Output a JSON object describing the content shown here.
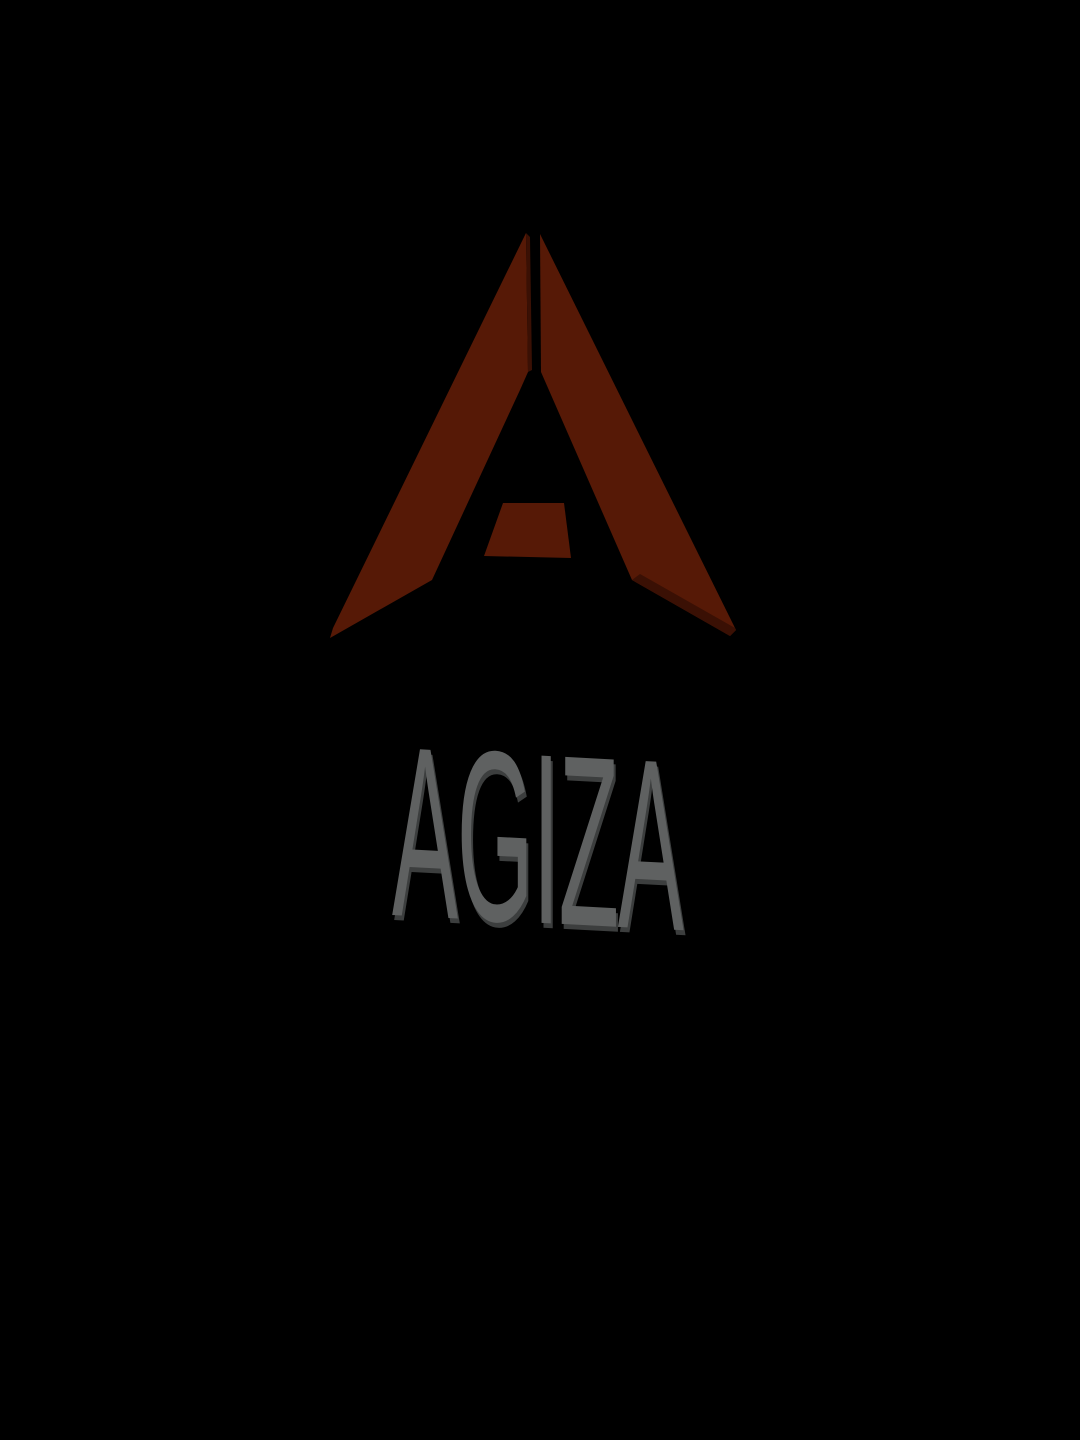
{
  "splash": {
    "brand_name": "AGIZA",
    "logo_icon": "stylized-letter-a-icon",
    "colors": {
      "background": "#000000",
      "logo_primary": "#561906",
      "logo_shadow": "#3a1004",
      "wordmark_face": "#5f6161",
      "wordmark_edge": "#3c3e3e"
    }
  }
}
